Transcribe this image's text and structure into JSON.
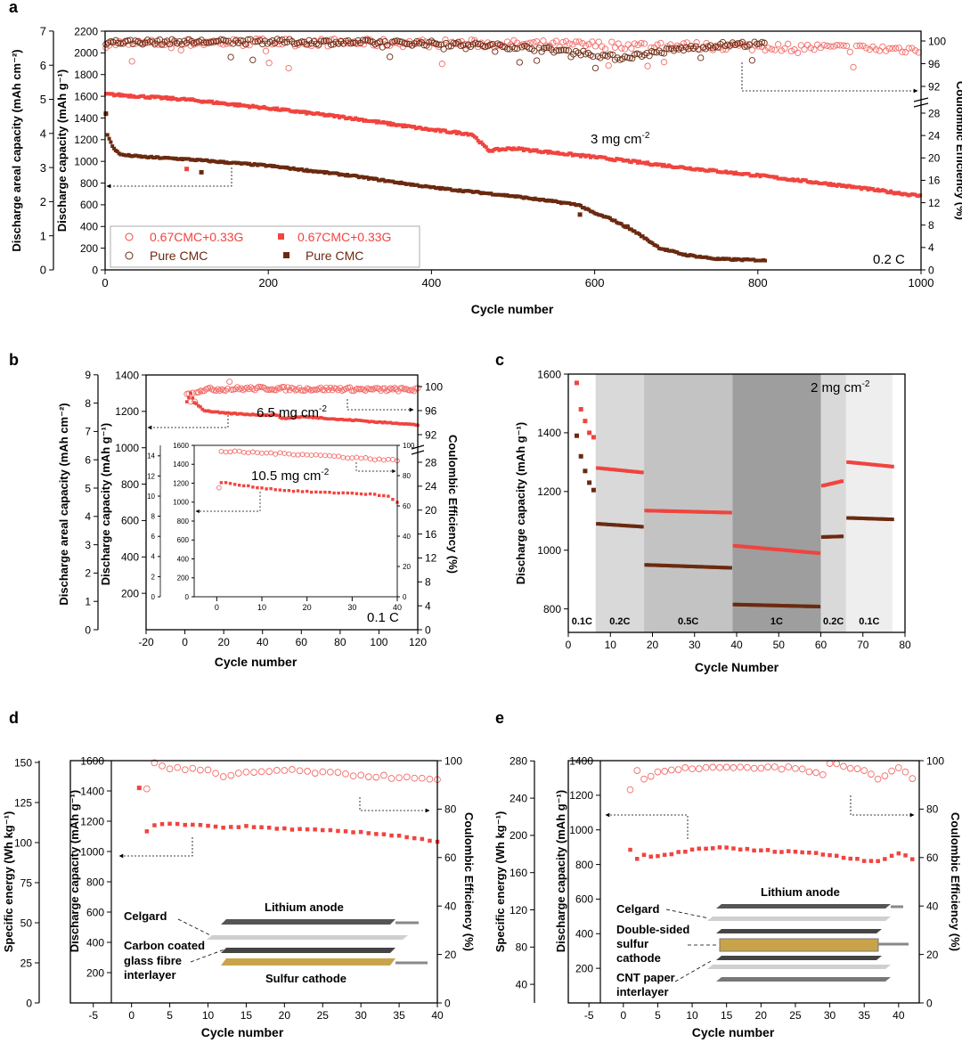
{
  "colors": {
    "red": "#f0443f",
    "red_light": "#f26b68",
    "brown": "#6a2a10",
    "band_light": "#eeeeee",
    "band_mid": "#d9d9d9",
    "band_dark1": "#c3c3c3",
    "band_dark2": "#9e9e9e"
  },
  "chart_data": [
    {
      "panel": "a",
      "type": "scatter",
      "xlabel": "Cycle number",
      "ylabel_left_outer": "Discharge areal capacity (mAh cm⁻²)",
      "ylabel_left_inner": "Discharge capacity (mAh g⁻¹)",
      "ylabel_right": "Coulombic Efficiency (%)",
      "xlim": [
        0,
        1000
      ],
      "x_ticks": [
        "0",
        "200",
        "400",
        "600",
        "800",
        "1000"
      ],
      "y_outer_ticks": [
        "0",
        "1",
        "2",
        "3",
        "4",
        "5",
        "6",
        "7"
      ],
      "y_inner_ticks": [
        "0",
        "200",
        "400",
        "600",
        "800",
        "1000",
        "1200",
        "1400",
        "1600",
        "1800",
        "2000",
        "2200"
      ],
      "y_right_ticks": [
        "0",
        "4",
        "8",
        "12",
        "16",
        "20",
        "24",
        "28",
        "92",
        "96",
        "100"
      ],
      "annotation_loading": "3 mg cm",
      "annotation_superscript": "-2",
      "annotation_rate": "0.2 C",
      "legend": [
        {
          "label": "0.67CMC+0.33G",
          "marker": "open-circle",
          "color": "red"
        },
        {
          "label": "0.67CMC+0.33G",
          "marker": "filled-square",
          "color": "red"
        },
        {
          "label": "Pure CMC",
          "marker": "open-circle",
          "color": "brown"
        },
        {
          "label": "Pure CMC",
          "marker": "filled-square",
          "color": "brown"
        }
      ],
      "series": [
        {
          "name": "0.67CMC+0.33G capacity",
          "x": [
            0,
            20,
            100,
            200,
            300,
            400,
            450,
            470,
            500,
            600,
            700,
            800,
            900,
            1000
          ],
          "y": [
            1620,
            1610,
            1570,
            1490,
            1400,
            1290,
            1250,
            1100,
            1120,
            1040,
            950,
            870,
            780,
            680
          ]
        },
        {
          "name": "Pure CMC capacity",
          "x": [
            1,
            3,
            10,
            20,
            50,
            100,
            200,
            300,
            400,
            500,
            580,
            600,
            620,
            650,
            680,
            710,
            750,
            800,
            810
          ],
          "y": [
            1440,
            1250,
            1120,
            1060,
            1040,
            1020,
            960,
            870,
            760,
            680,
            600,
            520,
            470,
            350,
            200,
            140,
            100,
            90,
            85
          ]
        },
        {
          "name": "0.67CMC+0.33G CE",
          "x": [
            0,
            200,
            400,
            600,
            800,
            1000
          ],
          "y": [
            99.5,
            99.8,
            99.6,
            99.3,
            99.0,
            98.5
          ]
        },
        {
          "name": "Pure CMC CE",
          "x": [
            0,
            200,
            400,
            500,
            580,
            630,
            700,
            760,
            810
          ],
          "y": [
            99.8,
            99.9,
            99.6,
            99.0,
            98.0,
            97.0,
            98.5,
            99.4,
            99.5
          ]
        }
      ]
    },
    {
      "panel": "b",
      "type": "scatter",
      "xlabel": "Cycle number",
      "ylabel_left_outer": "Discharge areal capacity (mAh cm⁻²)",
      "ylabel_left_inner": "Discharge capacity (mAh g⁻¹)",
      "ylabel_right": "Coulombic Efficiency (%)",
      "xlim": [
        -20,
        120
      ],
      "x_ticks": [
        "-20",
        "0",
        "20",
        "40",
        "60",
        "80",
        "100",
        "120"
      ],
      "y_outer_ticks": [
        "0",
        "1",
        "2",
        "3",
        "4",
        "5",
        "6",
        "7",
        "8",
        "9"
      ],
      "y_inner_ticks": [
        "200",
        "400",
        "600",
        "800",
        "1000",
        "1200",
        "1400"
      ],
      "y_right_ticks": [
        "0",
        "4",
        "8",
        "12",
        "16",
        "20",
        "24",
        "28",
        "92",
        "96",
        "100"
      ],
      "annotation_loading": "6.5 mg cm",
      "annotation_superscript": "-2",
      "annotation_rate": "0.1 C",
      "series": [
        {
          "name": "6.5 mg capacity",
          "x": [
            1,
            3,
            5,
            10,
            20,
            30,
            40,
            48,
            50,
            60,
            70,
            80,
            90,
            100,
            110,
            120
          ],
          "y": [
            1250,
            1300,
            1250,
            1205,
            1190,
            1185,
            1180,
            1180,
            1160,
            1170,
            1165,
            1155,
            1150,
            1140,
            1135,
            1125
          ]
        },
        {
          "name": "6.5 mg CE",
          "x": [
            1,
            10,
            20,
            40,
            60,
            80,
            100,
            120
          ],
          "y": [
            99.0,
            99.5,
            99.6,
            99.7,
            99.6,
            99.6,
            99.5,
            99.5
          ]
        }
      ],
      "inset": {
        "annotation_loading": "10.5 mg cm",
        "annotation_superscript": "-2",
        "xlim": [
          -5,
          40
        ],
        "x_ticks": [
          "0",
          "10",
          "20",
          "30",
          "40"
        ],
        "y_left_ticks": [
          "0",
          "200",
          "400",
          "600",
          "800",
          "1000",
          "1200",
          "1400",
          "1600"
        ],
        "y_outer_ticks": [
          "0",
          "2",
          "4",
          "6",
          "8",
          "10",
          "12",
          "14"
        ],
        "y_right_ticks": [
          "0",
          "20",
          "40",
          "60",
          "80",
          "100"
        ],
        "series": [
          {
            "name": "10.5 mg capacity",
            "x": [
              1,
              5,
              10,
              15,
              20,
              25,
              30,
              35,
              38,
              40
            ],
            "y": [
              1210,
              1180,
              1150,
              1125,
              1110,
              1100,
              1095,
              1080,
              1060,
              1000
            ]
          },
          {
            "name": "10.5 mg CE",
            "x": [
              1,
              10,
              20,
              30,
              40
            ],
            "y": [
              96,
              95,
              94,
              92,
              90
            ]
          }
        ]
      }
    },
    {
      "panel": "c",
      "type": "scatter",
      "xlabel": "Cycle Number",
      "ylabel": "Discharge capacity (mAh g⁻¹)",
      "xlim": [
        0,
        80
      ],
      "ylim": [
        720,
        1600
      ],
      "x_ticks": [
        "0",
        "10",
        "20",
        "30",
        "40",
        "50",
        "60",
        "70",
        "80"
      ],
      "y_ticks": [
        "800",
        "1000",
        "1200",
        "1400",
        "1600"
      ],
      "annotation_loading": "2 mg cm",
      "annotation_superscript": "-2",
      "rate_bands": [
        {
          "label": "0.1C",
          "x0": 0,
          "x1": 6.5,
          "shade": "white"
        },
        {
          "label": "0.2C",
          "x0": 6.5,
          "x1": 18,
          "shade": "band_mid"
        },
        {
          "label": "0.5C",
          "x0": 18,
          "x1": 39,
          "shade": "band_dark1"
        },
        {
          "label": "1C",
          "x0": 39,
          "x1": 60,
          "shade": "band_dark2"
        },
        {
          "label": "0.2C",
          "x0": 60,
          "x1": 66,
          "shade": "band_mid"
        },
        {
          "label": "0.1C",
          "x0": 66,
          "x1": 77,
          "shade": "band_light"
        }
      ],
      "series": [
        {
          "name": "red",
          "x": [
            2,
            3,
            4,
            5,
            6,
            7,
            17,
            18,
            38,
            39,
            59,
            60,
            65,
            66,
            77
          ],
          "y": [
            1570,
            1480,
            1440,
            1400,
            1380,
            1280,
            1265,
            1135,
            1128,
            1015,
            990,
            1220,
            1235,
            1300,
            1285
          ]
        },
        {
          "name": "brown",
          "x": [
            2,
            3,
            4,
            5,
            6,
            7,
            17,
            18,
            38,
            39,
            59,
            60,
            65,
            66,
            77
          ],
          "y": [
            1390,
            1320,
            1270,
            1230,
            1205,
            1090,
            1080,
            950,
            940,
            815,
            808,
            1045,
            1047,
            1110,
            1105
          ]
        }
      ]
    },
    {
      "panel": "d",
      "type": "scatter",
      "xlabel": "Cycle number",
      "ylabel_left_outer": "Specific energy (Wh kg⁻¹)",
      "ylabel_left_inner": "Discharge capacity (mAh g⁻¹)",
      "ylabel_right": "Coulombic Efficiency (%)",
      "xlim": [
        -8,
        40
      ],
      "x_ticks": [
        "-5",
        "0",
        "5",
        "10",
        "15",
        "20",
        "25",
        "30",
        "35",
        "40"
      ],
      "y_outer_ticks": [
        "0",
        "25",
        "50",
        "75",
        "100",
        "125",
        "150"
      ],
      "y_inner_ticks": [
        "200",
        "400",
        "600",
        "800",
        "1000",
        "1200",
        "1400",
        "1600"
      ],
      "y_right_ticks": [
        "0",
        "20",
        "40",
        "60",
        "80",
        "100"
      ],
      "schematic_labels": [
        "Lithium anode",
        "Celgard",
        "Carbon coated",
        "glass fibre",
        "interlayer",
        "Sulfur cathode"
      ],
      "series": [
        {
          "name": "capacity",
          "x": [
            1,
            2,
            3,
            5,
            10,
            12,
            15,
            20,
            25,
            30,
            35,
            40
          ],
          "y": [
            1420,
            1130,
            1170,
            1185,
            1170,
            1160,
            1165,
            1150,
            1140,
            1125,
            1105,
            1065
          ]
        },
        {
          "name": "CE",
          "x": [
            2,
            3,
            5,
            10,
            12,
            15,
            20,
            25,
            30,
            35,
            40
          ],
          "y": [
            88,
            99,
            97,
            96,
            93,
            95,
            96,
            95,
            94,
            93,
            92
          ]
        }
      ]
    },
    {
      "panel": "e",
      "type": "scatter",
      "xlabel": "Cycle number",
      "ylabel_left_outer": "Specific energy (Wh kg⁻¹)",
      "ylabel_left_inner": "Discharge capacity (mAh g⁻¹)",
      "ylabel_right": "Coulombic Efficiency (%)",
      "xlim": [
        -8,
        43
      ],
      "x_ticks": [
        "-5",
        "0",
        "5",
        "10",
        "15",
        "20",
        "25",
        "30",
        "35",
        "40"
      ],
      "y_outer_ticks": [
        "40",
        "80",
        "120",
        "160",
        "200",
        "240",
        "280"
      ],
      "y_inner_ticks": [
        "200",
        "400",
        "600",
        "800",
        "1000",
        "1200",
        "1400"
      ],
      "y_right_ticks": [
        "0",
        "20",
        "40",
        "60",
        "80",
        "100"
      ],
      "schematic_labels": [
        "Lithium anode",
        "Celgard",
        "Double-sided",
        "sulfur",
        "cathode",
        "CNT paper",
        "interlayer"
      ],
      "series": [
        {
          "name": "capacity",
          "x": [
            1,
            2,
            3,
            5,
            10,
            12,
            15,
            20,
            25,
            30,
            35,
            37,
            40,
            42
          ],
          "y": [
            880,
            830,
            855,
            845,
            885,
            895,
            895,
            880,
            875,
            855,
            825,
            820,
            865,
            830
          ]
        },
        {
          "name": "CE",
          "x": [
            1,
            2,
            3,
            5,
            10,
            15,
            20,
            25,
            29,
            30,
            35,
            37,
            40,
            42
          ],
          "y": [
            88,
            96,
            92,
            95,
            97,
            97,
            97,
            97,
            94,
            99,
            96,
            92,
            97,
            93
          ]
        }
      ]
    }
  ],
  "panels": {
    "a": "a",
    "b": "b",
    "c": "c",
    "d": "d",
    "e": "e"
  }
}
